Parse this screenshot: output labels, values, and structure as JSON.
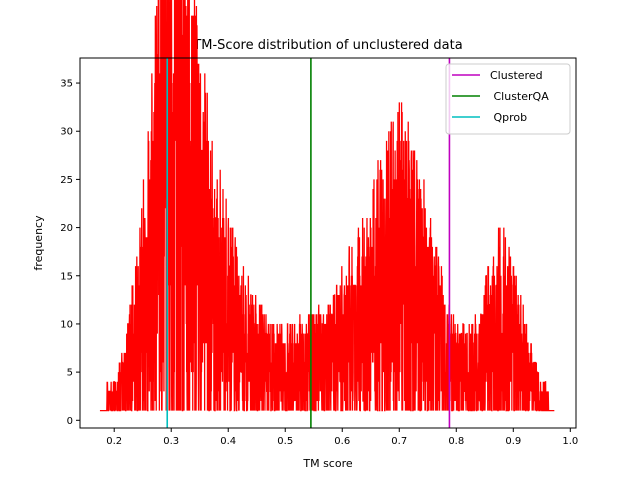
{
  "chart_data": {
    "type": "line",
    "title": "TM-Score distribution of unclustered data",
    "xlabel": "TM score",
    "ylabel": "frequency",
    "xlim": [
      0.14,
      1.01
    ],
    "ylim": [
      -0.8,
      37.6
    ],
    "xticks": [
      0.2,
      0.3,
      0.4,
      0.5,
      0.6,
      0.7,
      0.8,
      0.9,
      1.0
    ],
    "xtick_labels": [
      "0.2",
      "0.3",
      "0.4",
      "0.5",
      "0.6",
      "0.7",
      "0.8",
      "0.9",
      "1.0"
    ],
    "yticks": [
      0,
      5,
      10,
      15,
      20,
      25,
      30,
      35
    ],
    "ytick_labels": [
      "0",
      "5",
      "10",
      "15",
      "20",
      "25",
      "30",
      "35"
    ],
    "grid": false,
    "legend_position": "top-right",
    "distribution": {
      "color": "#ff0000",
      "x_range": [
        0.175,
        0.972
      ],
      "envelope": [
        {
          "x": 0.175,
          "y": 1
        },
        {
          "x": 0.2,
          "y": 2
        },
        {
          "x": 0.22,
          "y": 4
        },
        {
          "x": 0.245,
          "y": 10
        },
        {
          "x": 0.27,
          "y": 20
        },
        {
          "x": 0.285,
          "y": 28
        },
        {
          "x": 0.3,
          "y": 33
        },
        {
          "x": 0.315,
          "y": 30
        },
        {
          "x": 0.33,
          "y": 24
        },
        {
          "x": 0.35,
          "y": 19
        },
        {
          "x": 0.38,
          "y": 13
        },
        {
          "x": 0.42,
          "y": 8
        },
        {
          "x": 0.47,
          "y": 5
        },
        {
          "x": 0.52,
          "y": 5
        },
        {
          "x": 0.57,
          "y": 6
        },
        {
          "x": 0.62,
          "y": 9
        },
        {
          "x": 0.66,
          "y": 13
        },
        {
          "x": 0.7,
          "y": 16
        },
        {
          "x": 0.72,
          "y": 15
        },
        {
          "x": 0.75,
          "y": 11
        },
        {
          "x": 0.78,
          "y": 7
        },
        {
          "x": 0.8,
          "y": 5
        },
        {
          "x": 0.83,
          "y": 5
        },
        {
          "x": 0.86,
          "y": 8
        },
        {
          "x": 0.88,
          "y": 10
        },
        {
          "x": 0.9,
          "y": 8
        },
        {
          "x": 0.93,
          "y": 4
        },
        {
          "x": 0.95,
          "y": 2
        },
        {
          "x": 0.972,
          "y": 1
        }
      ]
    },
    "vlines": [
      {
        "name": "Clustered",
        "x": 0.788,
        "color": "#bf00bf"
      },
      {
        "name": " ClusterQA",
        "x": 0.545,
        "color": "#008000"
      },
      {
        "name": " Qprob",
        "x": 0.293,
        "color": "#00bfbf"
      }
    ]
  }
}
